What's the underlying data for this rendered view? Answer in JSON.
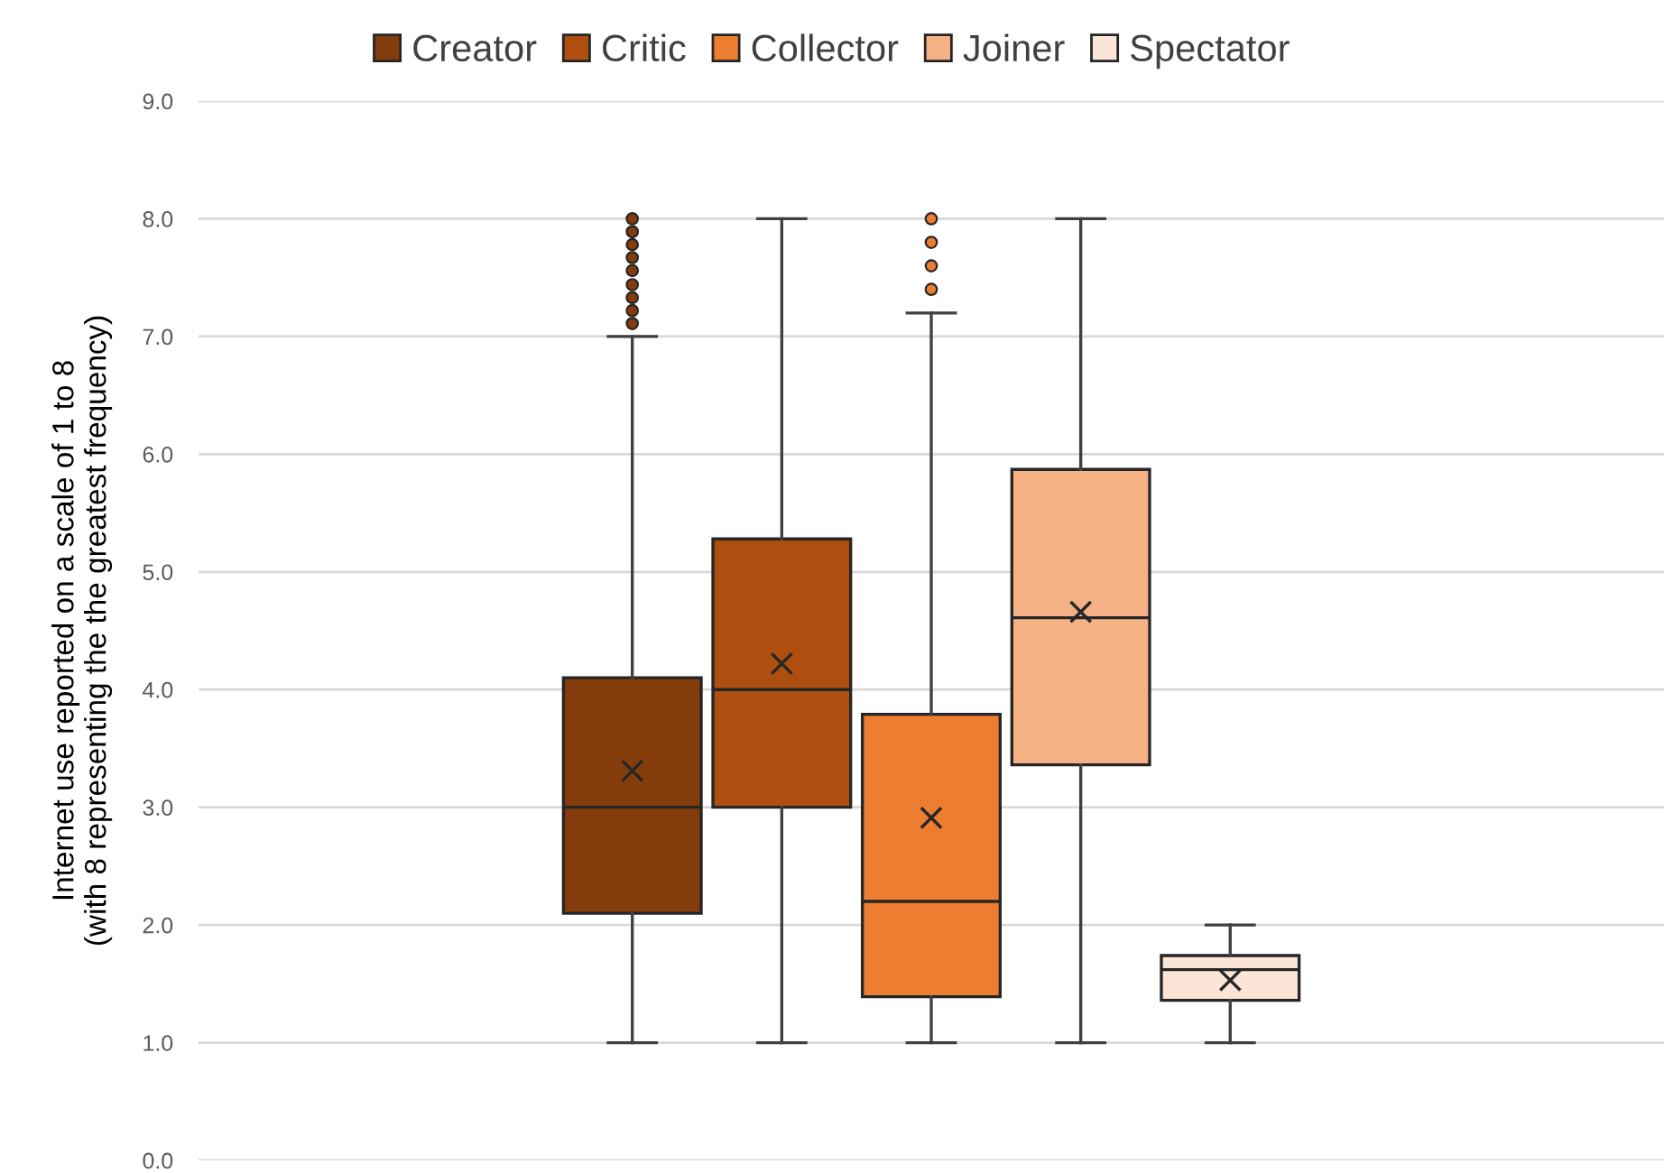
{
  "chart_data": {
    "type": "box",
    "ylabel": "Internet use reported on a scale of 1 to 8\n(with 8 representing the the greatest frequency)",
    "categories": [
      null
    ],
    "series": [
      {
        "name": "Creator",
        "color": "#843c0c",
        "boxes": [
          {
            "low": 1.0,
            "q1": 2.1,
            "median": 3.0,
            "q3": 4.1,
            "high": 7.0,
            "mean": 3.31,
            "outliers": [
              8.0,
              7.89,
              7.78,
              7.67,
              7.56,
              7.44,
              7.33,
              7.22,
              7.11
            ]
          }
        ]
      },
      {
        "name": "Critic",
        "color": "#ae4f0f",
        "boxes": [
          {
            "low": 1.0,
            "q1": 3.0,
            "median": 4.0,
            "q3": 5.28,
            "high": 8.0,
            "mean": 4.22
          }
        ]
      },
      {
        "name": "Collector",
        "color": "#ed7d31",
        "boxes": [
          {
            "low": 1.0,
            "q1": 1.39,
            "median": 2.2,
            "q3": 3.79,
            "high": 7.2,
            "mean": 2.91,
            "outliers": [
              8.0,
              7.8,
              7.6,
              7.4
            ]
          }
        ]
      },
      {
        "name": "Joiner",
        "color": "#f4b183",
        "boxes": [
          {
            "low": 1.0,
            "q1": 3.36,
            "median": 4.61,
            "q3": 5.87,
            "high": 8.0,
            "mean": 4.66
          }
        ]
      },
      {
        "name": "Spectator",
        "color": "#fbe5d6",
        "boxes": [
          {
            "low": 1.0,
            "q1": 1.36,
            "median": 1.62,
            "q3": 1.74,
            "high": 2.0,
            "mean": 1.53
          }
        ]
      }
    ],
    "ylim": [
      0,
      9
    ],
    "yticks": [
      {
        "value": 0,
        "label": "0.0"
      },
      {
        "value": 1,
        "label": "1.0"
      },
      {
        "value": 2,
        "label": "2.0"
      },
      {
        "value": 3,
        "label": "3.0"
      },
      {
        "value": 4,
        "label": "4.0"
      },
      {
        "value": 5,
        "label": "5.0"
      },
      {
        "value": 6,
        "label": "6.0"
      },
      {
        "value": 7,
        "label": "7.0"
      },
      {
        "value": 8,
        "label": "8.0"
      },
      {
        "value": 9,
        "label": "9.0"
      }
    ],
    "grid": "y",
    "legend": "top",
    "marker": "cross"
  }
}
